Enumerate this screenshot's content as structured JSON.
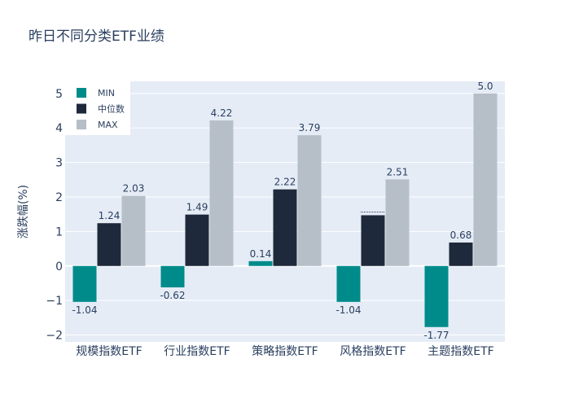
{
  "chart_data": {
    "type": "bar",
    "title": "昨日不同分类ETF业绩",
    "xlabel": "",
    "ylabel": "涨跌幅(%)",
    "ylim": [
      -2.2,
      5.35
    ],
    "yticks": [
      -2,
      -1,
      0,
      1,
      2,
      3,
      4,
      5
    ],
    "ytick_labels": [
      "−2",
      "−1",
      "0",
      "1",
      "2",
      "3",
      "4",
      "5"
    ],
    "categories": [
      "规模指数ETF",
      "行业指数ETF",
      "策略指数ETF",
      "风格指数ETF",
      "主题指数ETF"
    ],
    "series": [
      {
        "name": "MIN",
        "color": "#008b8b",
        "values": [
          -1.04,
          -0.62,
          0.14,
          -1.04,
          -1.77
        ],
        "labels": [
          "-1.04",
          "-0.62",
          "0.14",
          "-1.04",
          "-1.77"
        ]
      },
      {
        "name": "中位数",
        "color": "#1e293b",
        "values": [
          1.24,
          1.49,
          2.22,
          1.47,
          0.68
        ],
        "labels": [
          "1.24",
          "1.49",
          "2.22",
          "",
          "0.68"
        ]
      },
      {
        "name": "MAX",
        "color": "#b6bec8",
        "values": [
          2.03,
          4.22,
          3.79,
          2.51,
          5.0
        ],
        "labels": [
          "2.03",
          "4.22",
          "3.79",
          "2.51",
          "5.0"
        ]
      }
    ],
    "legend_position": "top-left",
    "grid": true
  }
}
